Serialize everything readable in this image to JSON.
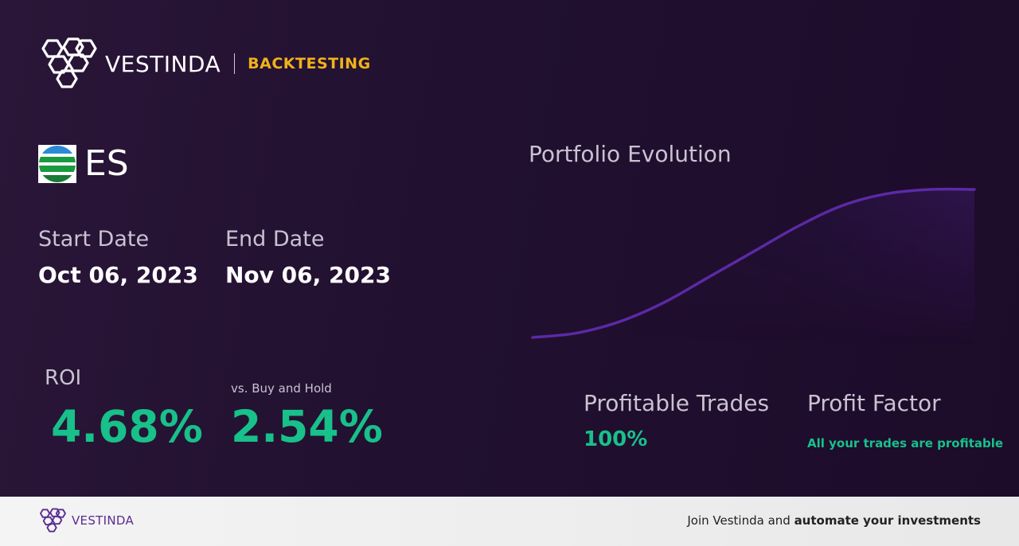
{
  "brand": {
    "name": "VESTINDA",
    "section": "BACKTESTING"
  },
  "ticker": {
    "symbol": "ES",
    "logo_icon": "es-flag-logo-icon"
  },
  "dates": {
    "start_label": "Start Date",
    "start_value": "Oct 06, 2023",
    "end_label": "End Date",
    "end_value": "Nov 06, 2023"
  },
  "metrics": {
    "roi_label": "ROI",
    "roi_value": "4.68%",
    "vs_label": "vs. Buy and Hold",
    "vs_value": "2.54%",
    "profitable_trades_label": "Profitable Trades",
    "profitable_trades_value": "100%",
    "profit_factor_label": "Profit Factor",
    "profit_factor_value": "All your trades are profitable"
  },
  "chart": {
    "title": "Portfolio Evolution",
    "line_color": "#5b2aa5"
  },
  "chart_data": {
    "type": "area",
    "title": "Portfolio Evolution",
    "xlabel": "",
    "ylabel": "",
    "grid": false,
    "x": [
      0,
      1,
      2,
      3,
      4,
      5,
      6,
      7,
      8,
      9,
      10
    ],
    "series": [
      {
        "values": [
          0.0,
          0.03,
          0.11,
          0.24,
          0.41,
          0.58,
          0.75,
          0.89,
          0.97,
          1.0,
          1.0
        ]
      }
    ]
  },
  "footer": {
    "brand": "VESTINDA",
    "cta_prefix": "Join Vestinda and ",
    "cta_bold": "automate your investments"
  },
  "colors": {
    "background": "#221031",
    "accent_green": "#18c08a",
    "accent_gold": "#f0b21a",
    "brand_purple": "#5a2c91"
  }
}
